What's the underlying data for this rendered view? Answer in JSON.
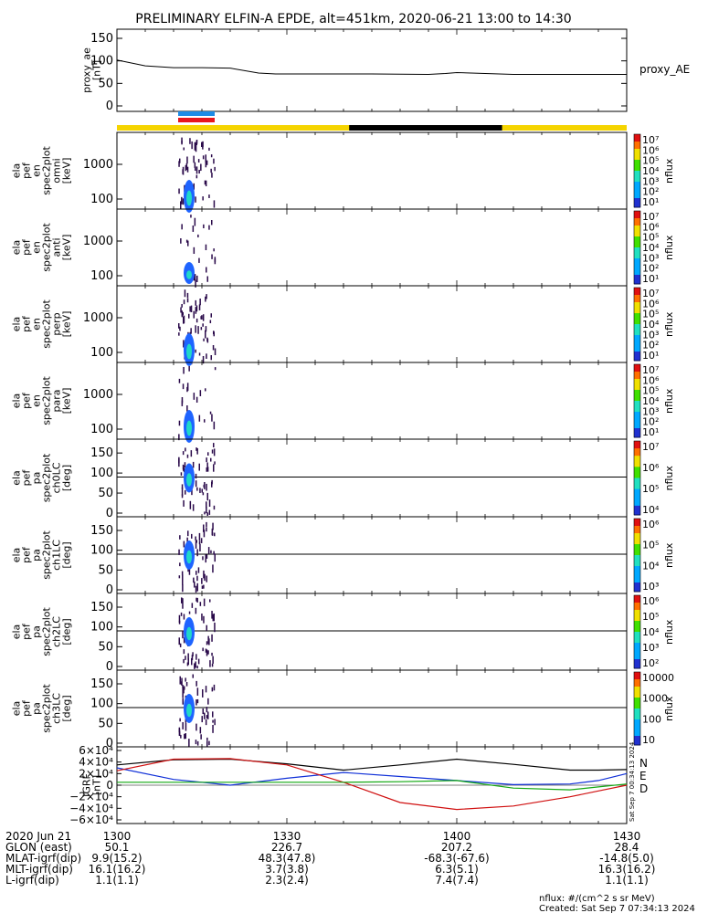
{
  "title": "PRELIMINARY ELFIN-A EPDE, alt=451km, 2020-06-21 13:00 to 14:30",
  "colors": {
    "yellow_bar": "#f5d400",
    "black_bar": "#000000",
    "blue_bar": "#1e8be6",
    "red_bar": "#e8171e",
    "grf_x": "#000000",
    "grf_y": "#1030d8",
    "grf_z": "#d01010",
    "grf_green": "#12a812",
    "spec_low": "#2a0a4a",
    "spec_mid": "#1e64ff",
    "spec_high": "#20d8c8"
  },
  "chart_data": [
    {
      "panel": "proxy_ae",
      "type": "line",
      "ylabel": [
        "proxy_ae",
        "[nT]"
      ],
      "series_label": "proxy_AE",
      "yticks": [
        "150",
        "100",
        "50",
        "0"
      ],
      "ylim": [
        0,
        150
      ],
      "x_minutes": [
        0,
        5,
        10,
        15,
        20,
        25,
        28,
        30,
        35,
        45,
        55,
        58,
        60,
        65,
        70,
        75,
        80,
        85,
        90
      ],
      "y": [
        102,
        89,
        85,
        85,
        84,
        73,
        71,
        71,
        71,
        71,
        70,
        72,
        74,
        72,
        70,
        70,
        70,
        70,
        70
      ]
    },
    {
      "panel": "elb_pef_en_spec2plot_omni",
      "type": "heatmap",
      "ylabel": [
        "ela",
        "pef",
        "en",
        "spec2plot",
        "omni",
        "[keV]"
      ],
      "yticks": [
        "1000",
        "100"
      ],
      "colorbar": {
        "label": "nflux",
        "ticks": [
          "10^7",
          "10^6",
          "10^5",
          "10^4",
          "10^3",
          "10^2",
          "10^1"
        ]
      }
    },
    {
      "panel": "elb_pef_en_spec2plot_anti",
      "type": "heatmap",
      "ylabel": [
        "ela",
        "pef",
        "en",
        "spec2plot",
        "anti",
        "[keV]"
      ],
      "yticks": [
        "1000",
        "100"
      ],
      "colorbar": {
        "label": "nflux",
        "ticks": [
          "10^7",
          "10^6",
          "10^5",
          "10^4",
          "10^3",
          "10^2",
          "10^1"
        ]
      }
    },
    {
      "panel": "elb_pef_en_spec2plot_perp",
      "type": "heatmap",
      "ylabel": [
        "ela",
        "pef",
        "en",
        "spec2plot",
        "perp",
        "[keV]"
      ],
      "yticks": [
        "1000",
        "100"
      ],
      "colorbar": {
        "label": "nflux",
        "ticks": [
          "10^7",
          "10^6",
          "10^5",
          "10^4",
          "10^3",
          "10^2",
          "10^1"
        ]
      }
    },
    {
      "panel": "elb_pef_en_spec2plot_para",
      "type": "heatmap",
      "ylabel": [
        "ela",
        "pef",
        "en",
        "spec2plot",
        "para",
        "[keV]"
      ],
      "yticks": [
        "1000",
        "100"
      ],
      "colorbar": {
        "label": "nflux",
        "ticks": [
          "10^7",
          "10^6",
          "10^5",
          "10^4",
          "10^3",
          "10^2",
          "10^1"
        ]
      }
    },
    {
      "panel": "elb_pef_pa_spec2plot_ch0LC",
      "type": "heatmap",
      "ylabel": [
        "ela",
        "pef",
        "pa",
        "spec2plot",
        "ch0LC",
        "[deg]"
      ],
      "yticks": [
        "150",
        "100",
        "50",
        "0"
      ],
      "colorbar": {
        "label": "nflux",
        "ticks": [
          "10^7",
          "10^6",
          "10^5",
          "10^4"
        ]
      }
    },
    {
      "panel": "elb_pef_pa_spec2plot_ch1LC",
      "type": "heatmap",
      "ylabel": [
        "ela",
        "pef",
        "pa",
        "spec2plot",
        "ch1LC",
        "[deg]"
      ],
      "yticks": [
        "150",
        "100",
        "50",
        "0"
      ],
      "colorbar": {
        "label": "nflux",
        "ticks": [
          "10^6",
          "10^5",
          "10^4",
          "10^3"
        ]
      }
    },
    {
      "panel": "elb_pef_pa_spec2plot_ch2LC",
      "type": "heatmap",
      "ylabel": [
        "ela",
        "pef",
        "pa",
        "spec2plot",
        "ch2LC",
        "[deg]"
      ],
      "yticks": [
        "150",
        "100",
        "50",
        "0"
      ],
      "colorbar": {
        "label": "nflux",
        "ticks": [
          "10^6",
          "10^5",
          "10^4",
          "10^3",
          "10^2"
        ]
      }
    },
    {
      "panel": "elb_pef_pa_spec2plot_ch3LC",
      "type": "heatmap",
      "ylabel": [
        "ela",
        "pef",
        "pa",
        "spec2plot",
        "ch3LC",
        "[deg]"
      ],
      "yticks": [
        "150",
        "100",
        "50",
        "0"
      ],
      "colorbar": {
        "label": "nflux",
        "ticks": [
          "10000",
          "1000",
          "100",
          "10"
        ]
      }
    },
    {
      "panel": "igrf",
      "type": "line",
      "ylabel": [
        "IGRF",
        "[nT]"
      ],
      "yticks": [
        "6×10⁴",
        "4×10⁴",
        "2×10⁴",
        "0",
        "−2×10⁴",
        "−4×10⁴",
        "−6×10⁴"
      ],
      "ylim": [
        -60000,
        60000
      ],
      "legend": [
        "N",
        "E",
        "D"
      ],
      "x_minutes": [
        0,
        10,
        20,
        30,
        40,
        50,
        60,
        70,
        80,
        85,
        90
      ],
      "series": [
        {
          "name": "N",
          "values": [
            35000,
            44000,
            45000,
            37000,
            26000,
            35000,
            45000,
            36000,
            26000,
            26000,
            27000
          ]
        },
        {
          "name": "E",
          "values": [
            30000,
            10000,
            0,
            12000,
            22000,
            15000,
            8000,
            1000,
            2000,
            8000,
            20000
          ]
        },
        {
          "name": "D",
          "values": [
            25000,
            45000,
            46000,
            35000,
            5000,
            -30000,
            -42000,
            -36000,
            -20000,
            -10000,
            0
          ]
        },
        {
          "name": "green",
          "values": [
            5000,
            5000,
            5000,
            5000,
            5000,
            6000,
            8000,
            -5000,
            -8000,
            -3000,
            2000
          ]
        }
      ]
    }
  ],
  "xaxis": {
    "rows": [
      {
        "label": "2020 Jun 21",
        "values": [
          "1300",
          "1330",
          "1400",
          "1430"
        ]
      },
      {
        "label": "GLON (east)",
        "values": [
          "50.1",
          "226.7",
          "207.2",
          "28.4"
        ]
      },
      {
        "label": "MLAT-igrf(dip)",
        "values": [
          "9.9(15.2)",
          "48.3(47.8)",
          "-68.3(-67.6)",
          "-14.8(5.0)"
        ]
      },
      {
        "label": "MLT-igrf(dip)",
        "values": [
          "16.1(16.2)",
          "3.7(3.8)",
          "6.3(5.1)",
          "16.3(16.2)"
        ]
      },
      {
        "label": "L-igrf(dip)",
        "values": [
          "1.1(1.1)",
          "2.3(2.4)",
          "7.4(7.4)",
          "1.1(1.1)"
        ]
      }
    ]
  },
  "sideinfo": "Sat Sep  7 00:34:13 2024",
  "footer": {
    "units": "nflux: #/(cm^2 s sr MeV)",
    "created": "Created: Sat Sep  7 07:34:13 2024"
  }
}
